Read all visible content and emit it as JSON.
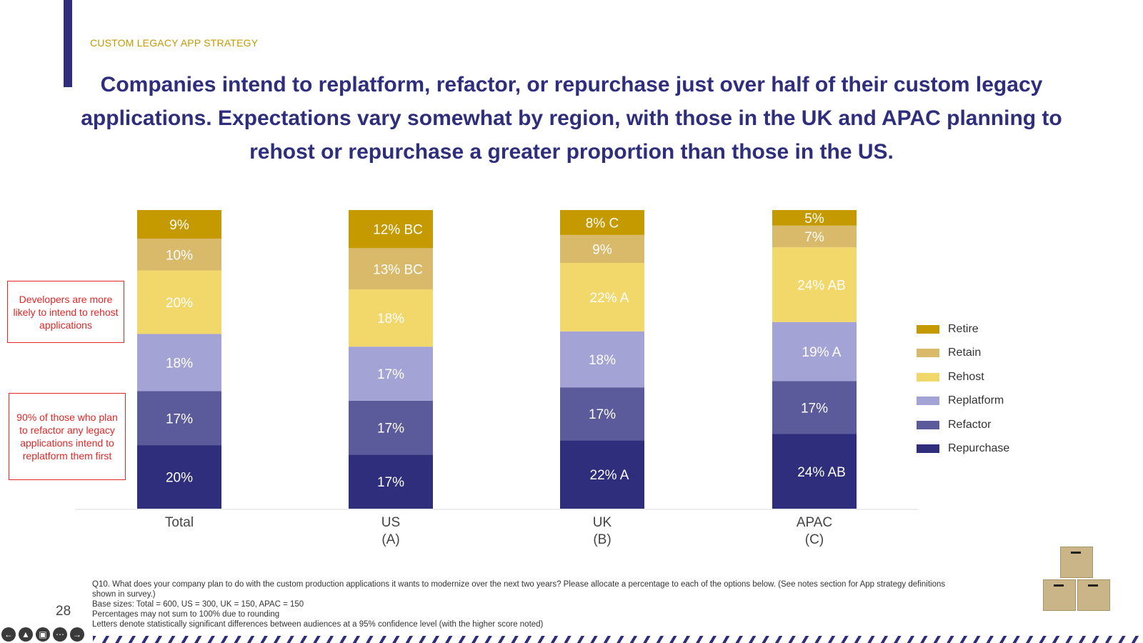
{
  "header": {
    "eyebrow": "CUSTOM LEGACY APP STRATEGY",
    "headline": "Companies intend to replatform, refactor, or repurchase just over half of their custom legacy applications. Expectations vary somewhat by region, with those in the UK and APAC planning to rehost or repurchase a greater proportion than those in the US."
  },
  "callouts": [
    "Developers are more likely to intend to rehost applications",
    "90% of those who plan to refactor any legacy applications intend to replatform them first"
  ],
  "footnote": [
    "Q10. What does your company plan to do with the custom production applications it wants to modernize over the next two years? Please allocate a percentage to each of the options below. (See notes section for App strategy definitions shown in survey.)",
    "Base sizes: Total = 600, US = 300, UK = 150, APAC = 150",
    "Percentages may not sum to 100% due to rounding",
    "Letters denote statistically significant differences between audiences at a 95% confidence level (with the higher score noted)"
  ],
  "page_number": "28",
  "colors": {
    "accent": "#2f2e7d",
    "eyebrow": "#c49a00",
    "callout": "#e32626"
  },
  "chart_data": {
    "type": "bar",
    "stacked": true,
    "title": "",
    "categories": [
      "Total",
      "US\n(A)",
      "UK\n(B)",
      "APAC\n(C)"
    ],
    "legend_position": "right",
    "series": [
      {
        "name": "Repurchase",
        "color": "#2f2e7d",
        "values": [
          20,
          17,
          22,
          24
        ],
        "labels": [
          "20%",
          "17%",
          "22% A",
          "24% AB"
        ]
      },
      {
        "name": "Refactor",
        "color": "#5b5a9a",
        "values": [
          17,
          17,
          17,
          17
        ],
        "labels": [
          "17%",
          "17%",
          "17%",
          "17%"
        ]
      },
      {
        "name": "Replatform",
        "color": "#a3a3d5",
        "values": [
          18,
          17,
          18,
          19
        ],
        "labels": [
          "18%",
          "17%",
          "18%",
          "19% A"
        ]
      },
      {
        "name": "Rehost",
        "color": "#f2d76b",
        "values": [
          20,
          18,
          22,
          24
        ],
        "labels": [
          "20%",
          "18%",
          "22% A",
          "24% AB"
        ]
      },
      {
        "name": "Retain",
        "color": "#d9b96a",
        "values": [
          10,
          13,
          9,
          7
        ],
        "labels": [
          "10%",
          "13% BC",
          "9%",
          "7%"
        ]
      },
      {
        "name": "Retire",
        "color": "#c49a00",
        "values": [
          9,
          12,
          8,
          5
        ],
        "labels": [
          "9%",
          "12% BC",
          "8% C",
          "5%"
        ]
      }
    ]
  },
  "decoration": {
    "icon": "boxes-icon"
  }
}
